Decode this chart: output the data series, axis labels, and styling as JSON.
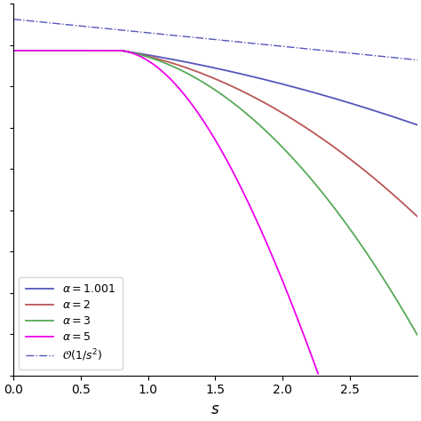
{
  "title": "",
  "xlabel": "s",
  "ylabel": "",
  "xlim": [
    0,
    3.0
  ],
  "x_ticks": [
    0,
    0.5,
    1,
    1.5,
    2,
    2.5
  ],
  "background_color": "#ffffff",
  "alpha_1001_color": "#5555bb",
  "alpha_2_color": "#bb5555",
  "alpha_3_color": "#55aa55",
  "alpha_5_color": "#ee00ee",
  "order_color": "#5555bb",
  "ylim": [
    -10.5,
    1.0
  ]
}
